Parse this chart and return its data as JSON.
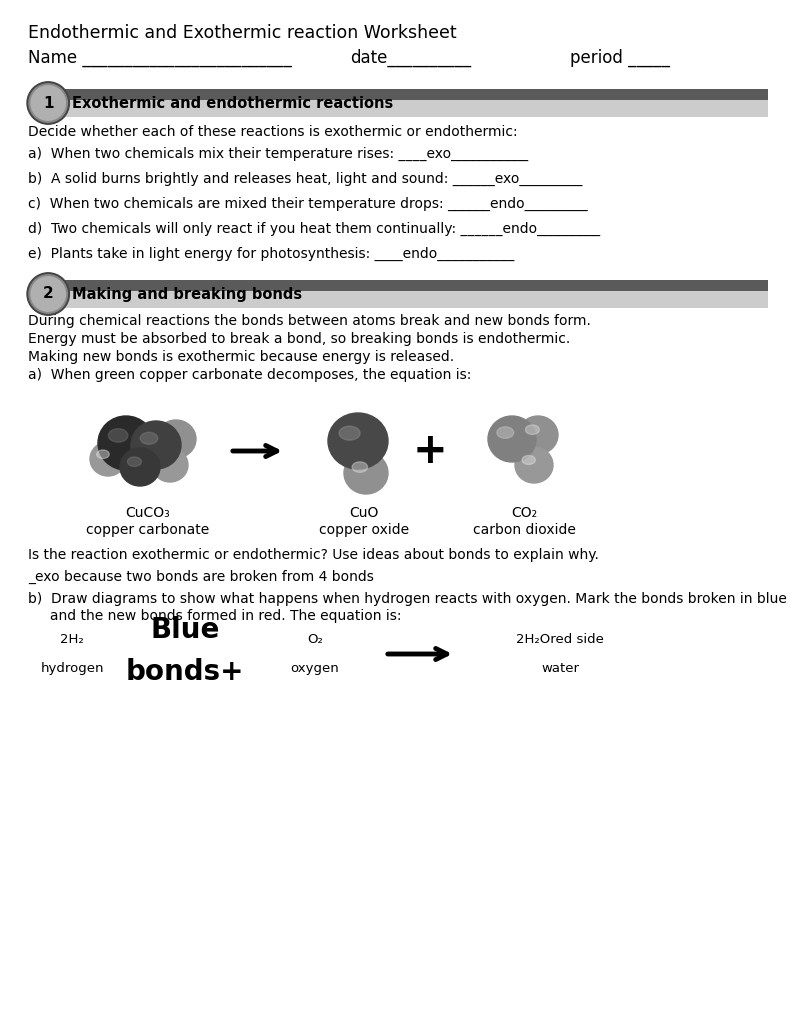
{
  "title": "Endothermic and Exothermic reaction Worksheet",
  "name_line_parts": [
    "Name _________________________",
    "date__________",
    "period _____"
  ],
  "section1_num": "1",
  "section1_title": "Exothermic and endothermic reactions",
  "section1_intro": "Decide whether each of these reactions is exothermic or endothermic:",
  "section1_items": [
    "a)  When two chemicals mix their temperature rises: ____exo___________",
    "b)  A solid burns brightly and releases heat, light and sound: ______exo_________",
    "c)  When two chemicals are mixed their temperature drops: ______endo_________",
    "d)  Two chemicals will only react if you heat them continually: ______endo_________",
    "e)  Plants take in light energy for photosynthesis: ____endo___________"
  ],
  "section2_num": "2",
  "section2_title": "Making and breaking bonds",
  "section2_lines": [
    "During chemical reactions the bonds between atoms break and new bonds form.",
    "Energy must be absorbed to break a bond, so breaking bonds is endothermic.",
    "Making new bonds is exothermic because energy is released.",
    "a)  When green copper carbonate decomposes, the equation is:"
  ],
  "mol_labels": [
    "CuCO₃",
    "CuO",
    "CO₂"
  ],
  "mol_sublabels": [
    "copper carbonate",
    "copper oxide",
    "carbon dioxide"
  ],
  "question_line": "Is the reaction exothermic or endothermic? Use ideas about bonds to explain why.",
  "answer_line": "_exo because two bonds are broken from 4 bonds",
  "partb_line1": "b)  Draw diagrams to show what happens when hydrogen reacts with oxygen. Mark the bonds broken in blue",
  "partb_line2": "     and the new bonds formed in red. The equation is:",
  "eq_formula1": "2H₂",
  "eq_name1": "hydrogen",
  "eq_formula2": "O₂",
  "eq_name2": "oxygen",
  "eq_formula3": "2H₂Ored side",
  "eq_name3": "water",
  "blue_bonds_line1": "Blue",
  "blue_bonds_line2": "bonds+",
  "bg_color": "#ffffff"
}
